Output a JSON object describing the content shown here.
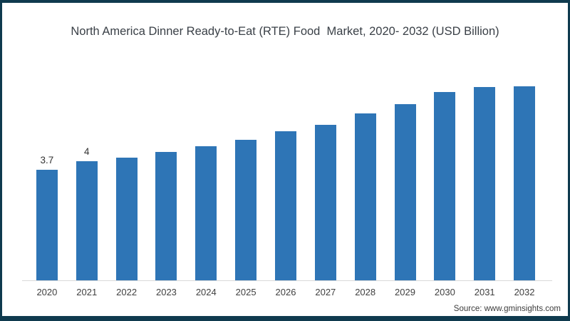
{
  "chart_data": {
    "type": "bar",
    "title": "North America Dinner Ready-to-Eat (RTE) Food  Market, 2020- 2032 (USD Billion)",
    "unit": "USD Billion",
    "categories": [
      "2020",
      "2021",
      "2022",
      "2023",
      "2024",
      "2025",
      "2026",
      "2027",
      "2028",
      "2029",
      "2030",
      "2031",
      "2032"
    ],
    "values": [
      3.7,
      4,
      4.1,
      4.3,
      4.5,
      4.7,
      5.0,
      5.2,
      5.6,
      5.9,
      6.3,
      6.6,
      7.0
    ],
    "data_labels": [
      "3.7",
      "4",
      "",
      "",
      "",
      "",
      "",
      "",
      "",
      "",
      "",
      "",
      ""
    ],
    "xlabel": "",
    "ylabel": "",
    "ylim": [
      0,
      7.0
    ],
    "grid": false,
    "legend": "none",
    "bar_color": "#2e75b6",
    "axis_line_color": "#d9d9d9"
  },
  "source_label": "Source: www.gminsights.com",
  "colors": {
    "frame_border": "#0f3a4e",
    "background": "#ffffff",
    "title_text": "#3a4047",
    "tick_text": "#404040"
  }
}
